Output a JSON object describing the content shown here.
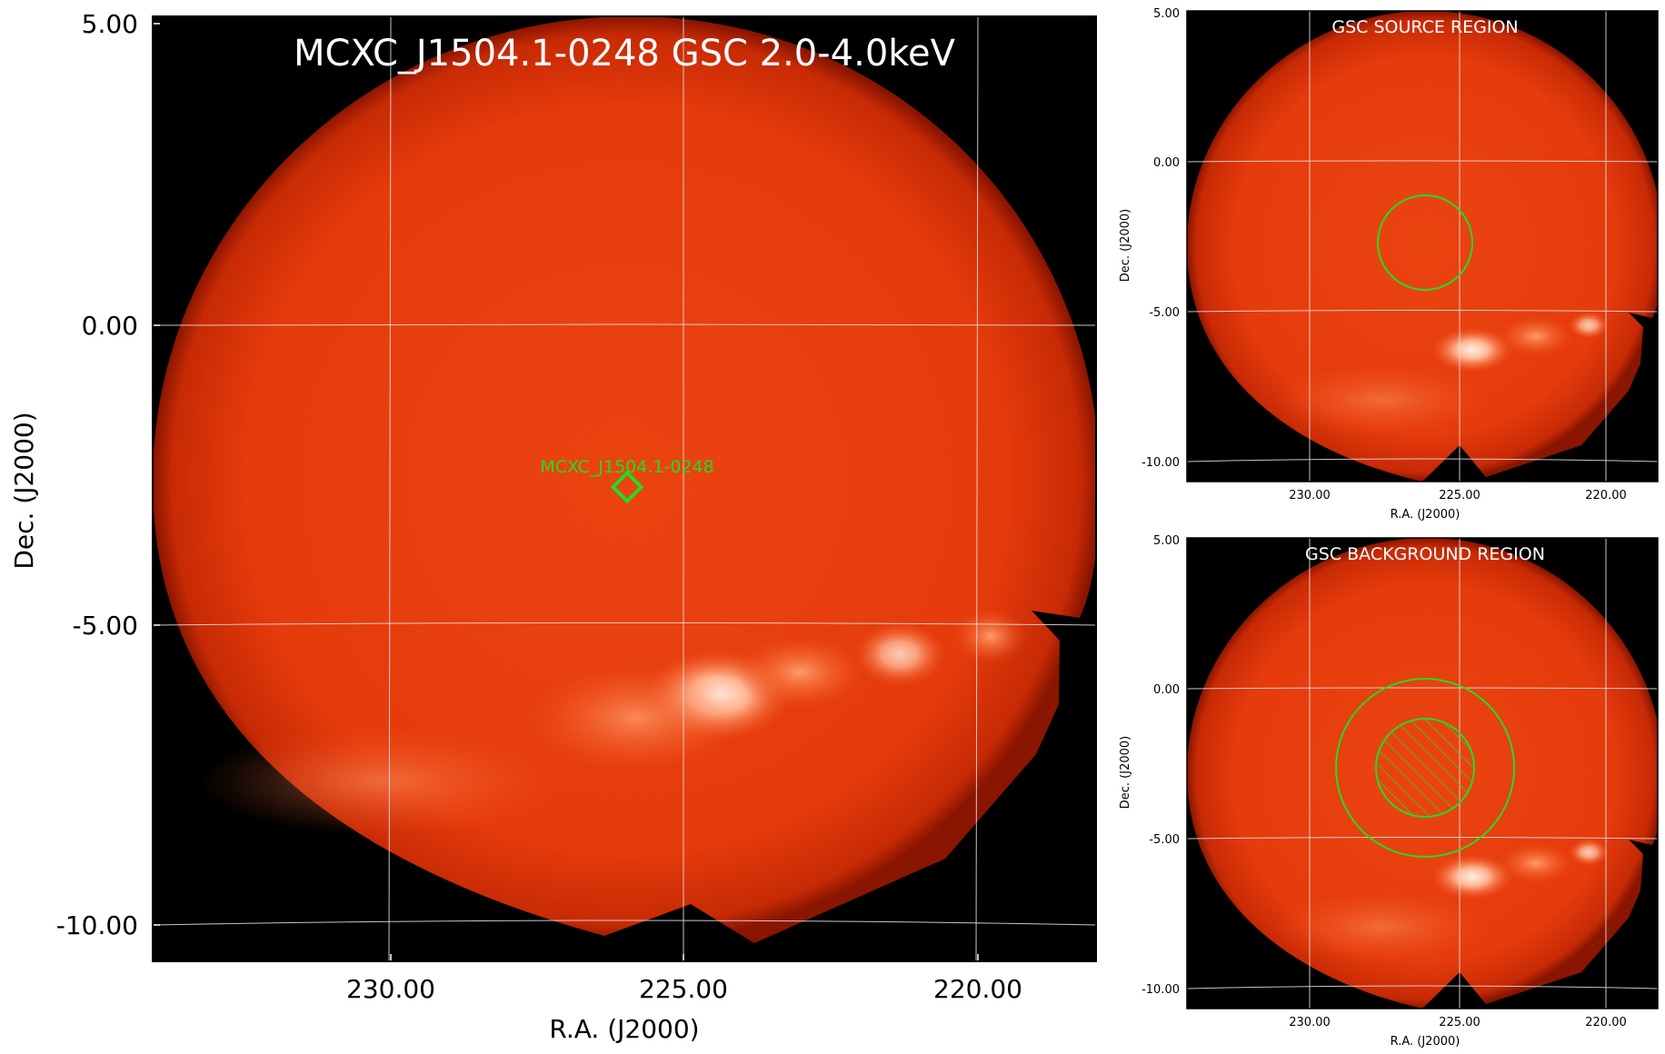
{
  "main": {
    "title": "MCXC_J1504.1-0248 GSC 2.0-4.0keV",
    "xlabel": "R.A. (J2000)",
    "ylabel": "Dec. (J2000)",
    "xticks": [
      "230.00",
      "225.00",
      "220.00"
    ],
    "yticks": [
      "5.00",
      "0.00",
      "-5.00",
      "-10.00"
    ],
    "source_label": "MCXC_J1504.1-0248"
  },
  "source_panel": {
    "title": "GSC SOURCE REGION",
    "xlabel": "R.A. (J2000)",
    "ylabel": "Dec. (J2000)",
    "xticks": [
      "230.00",
      "225.00",
      "220.00"
    ],
    "yticks": [
      "5.00",
      "0.00",
      "-5.00",
      "-10.00"
    ]
  },
  "background_panel": {
    "title": "GSC BACKGROUND REGION",
    "xlabel": "R.A. (J2000)",
    "ylabel": "Dec. (J2000)",
    "xticks": [
      "230.00",
      "225.00",
      "220.00"
    ],
    "yticks": [
      "5.00",
      "0.00",
      "-5.00",
      "-10.00"
    ]
  },
  "colors": {
    "map": "#e8360a",
    "map_bright": "#ffc9ad",
    "region": "#22dd22",
    "grid": "#dddddd",
    "frame": "#000000"
  }
}
